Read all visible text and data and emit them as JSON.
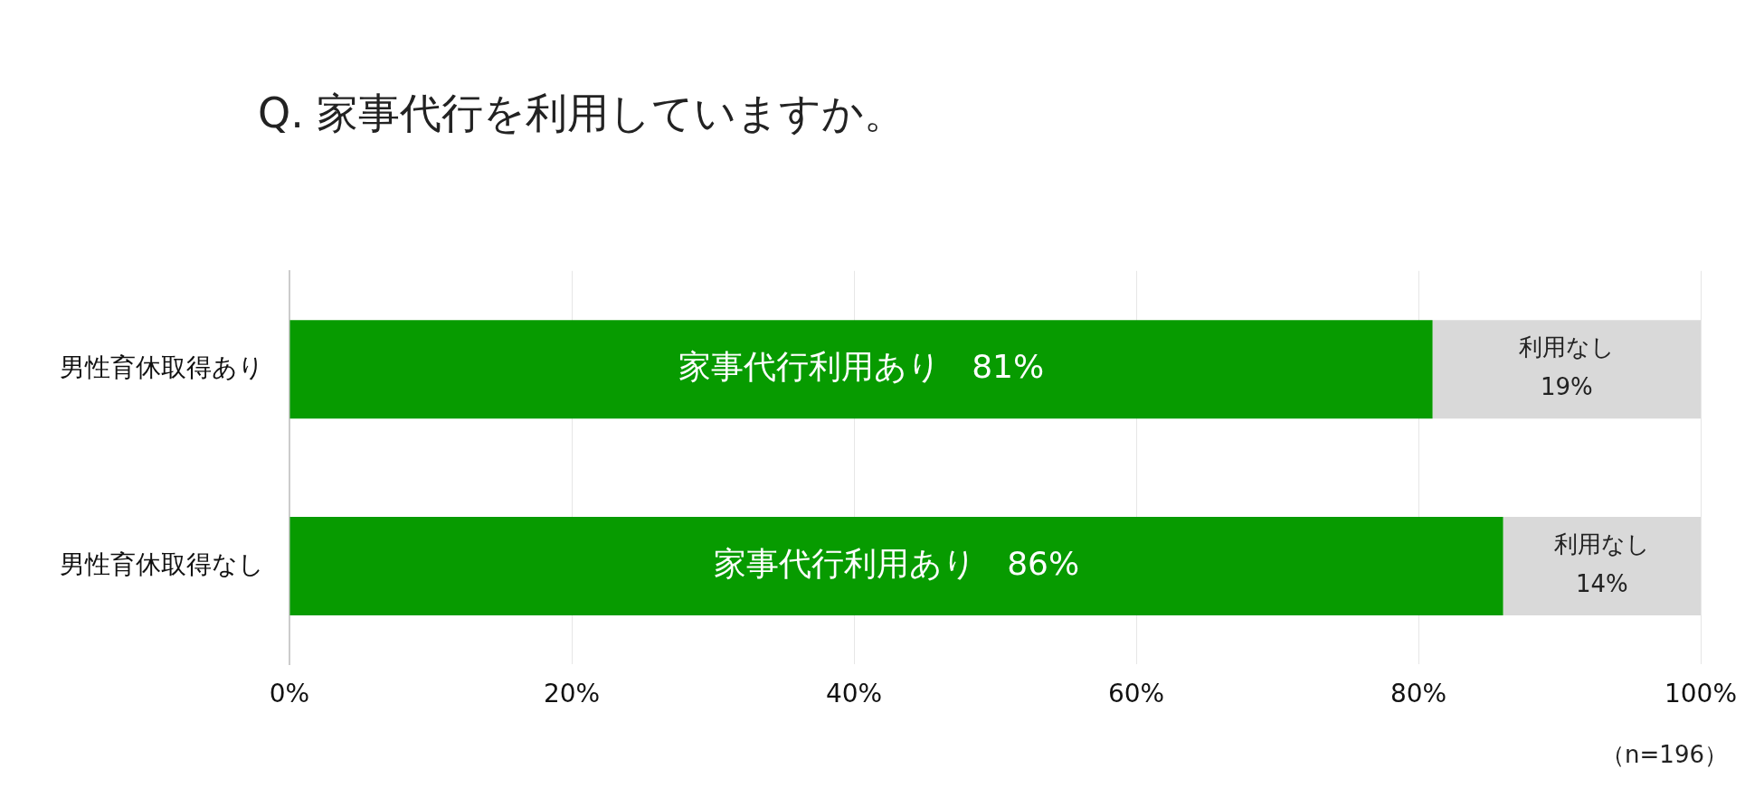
{
  "chart_data": {
    "type": "bar",
    "title": "Q. 家事代行を利用していますか。",
    "orientation": "horizontal",
    "stacked": true,
    "categories": [
      "男性育休取得あり",
      "男性育休取得なし"
    ],
    "series": [
      {
        "name": "家事代行利用あり",
        "color": "#079b00",
        "values": [
          81,
          86
        ],
        "value_labels": [
          "81%",
          "86%"
        ]
      },
      {
        "name": "利用なし",
        "color": "#d9d9d9",
        "values": [
          19,
          14
        ],
        "value_labels": [
          "19%",
          "14%"
        ]
      }
    ],
    "xlim": [
      0,
      100
    ],
    "xticks": [
      {
        "value": 0,
        "label": "0%"
      },
      {
        "value": 20,
        "label": "20%"
      },
      {
        "value": 40,
        "label": "40%"
      },
      {
        "value": 60,
        "label": "60%"
      },
      {
        "value": 80,
        "label": "80%"
      },
      {
        "value": 100,
        "label": "100%"
      }
    ],
    "grid": "x",
    "legend": false,
    "annotations": [
      "（n=196）"
    ]
  }
}
